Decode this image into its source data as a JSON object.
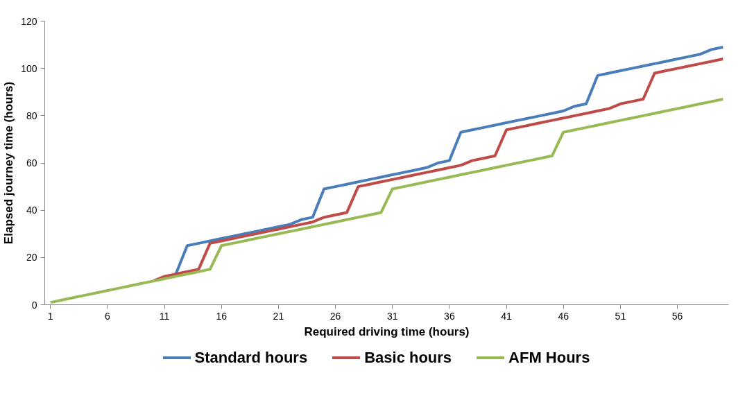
{
  "chart_data": {
    "type": "line",
    "xlabel": "Required driving time (hours)",
    "ylabel": "Elapsed journey time (hours)",
    "x": [
      1,
      2,
      3,
      4,
      5,
      6,
      7,
      8,
      9,
      10,
      11,
      12,
      13,
      14,
      15,
      16,
      17,
      18,
      19,
      20,
      21,
      22,
      23,
      24,
      25,
      26,
      27,
      28,
      29,
      30,
      31,
      32,
      33,
      34,
      35,
      36,
      37,
      38,
      39,
      40,
      41,
      42,
      43,
      44,
      45,
      46,
      47,
      48,
      49,
      50,
      51,
      52,
      53,
      54,
      55,
      56,
      57,
      58,
      59,
      60
    ],
    "series": [
      {
        "name": "Standard hours",
        "color": "#4a7ebb",
        "values": [
          null,
          null,
          null,
          null,
          null,
          null,
          null,
          null,
          null,
          null,
          null,
          13,
          25,
          26,
          27,
          28,
          29,
          30,
          31,
          32,
          33,
          34,
          36,
          37,
          49,
          50,
          51,
          52,
          53,
          54,
          55,
          56,
          57,
          58,
          60,
          61,
          73,
          74,
          75,
          76,
          77,
          78,
          79,
          80,
          81,
          82,
          84,
          85,
          97,
          98,
          99,
          100,
          101,
          102,
          103,
          104,
          105,
          106,
          108,
          109
        ]
      },
      {
        "name": "Basic hours",
        "color": "#be4b48",
        "values": [
          null,
          null,
          null,
          null,
          null,
          null,
          null,
          null,
          null,
          10,
          12,
          13,
          14,
          15,
          26,
          27,
          28,
          29,
          30,
          31,
          32,
          33,
          34,
          35,
          37,
          38,
          39,
          50,
          51,
          52,
          53,
          54,
          55,
          56,
          57,
          58,
          59,
          61,
          62,
          63,
          74,
          75,
          76,
          77,
          78,
          79,
          80,
          81,
          82,
          83,
          85,
          86,
          87,
          98,
          99,
          100,
          101,
          102,
          103,
          104
        ]
      },
      {
        "name": "AFM Hours",
        "color": "#98b954",
        "values": [
          1,
          2,
          3,
          4,
          5,
          6,
          7,
          8,
          9,
          10,
          11,
          12,
          13,
          14,
          15,
          25,
          26,
          27,
          28,
          29,
          30,
          31,
          32,
          33,
          34,
          35,
          36,
          37,
          38,
          39,
          49,
          50,
          51,
          52,
          53,
          54,
          55,
          56,
          57,
          58,
          59,
          60,
          61,
          62,
          63,
          73,
          74,
          75,
          76,
          77,
          78,
          79,
          80,
          81,
          82,
          83,
          84,
          85,
          86,
          87
        ]
      }
    ],
    "xlim": [
      0.5,
      60.5
    ],
    "xticks": [
      1,
      6,
      11,
      16,
      21,
      26,
      31,
      36,
      41,
      46,
      51,
      56
    ],
    "ylim": [
      0,
      120
    ],
    "yticks": [
      0,
      20,
      40,
      60,
      80,
      100,
      120
    ],
    "grid": false,
    "legend": "bottom",
    "marker": "none",
    "line_style": "solid"
  }
}
